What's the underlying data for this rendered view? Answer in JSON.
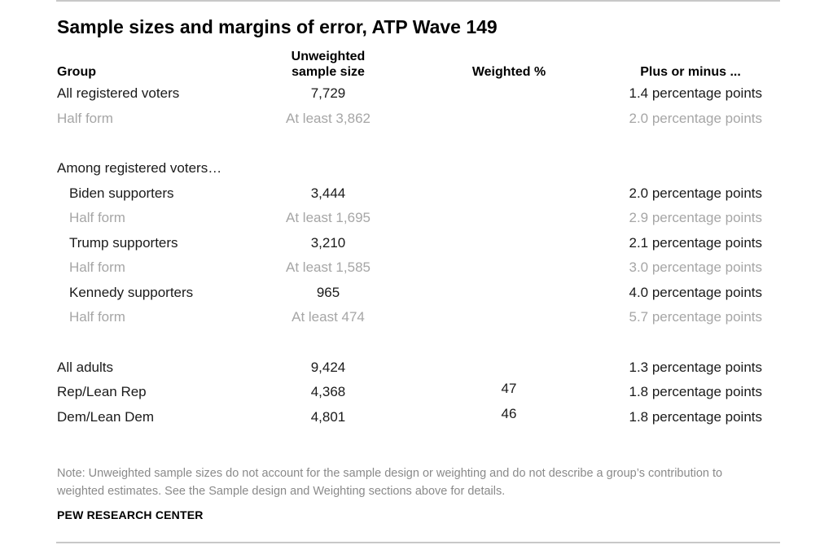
{
  "title": "Sample sizes and margins of error, ATP Wave 149",
  "headers": {
    "group": "Group",
    "unweighted_line1": "Unweighted",
    "unweighted_line2": "sample size",
    "weighted": "Weighted %",
    "plus_minus": "Plus or minus ..."
  },
  "rows": [
    {
      "label": "All registered voters",
      "unweighted": "7,729",
      "weighted": "",
      "moe": "1.4 percentage points"
    },
    {
      "label": "Half form",
      "unweighted": "At least 3,862",
      "weighted": "",
      "moe": "2.0 percentage points"
    },
    {
      "label": "Among registered voters…",
      "unweighted": "",
      "weighted": "",
      "moe": ""
    },
    {
      "label": "Biden supporters",
      "unweighted": "3,444",
      "weighted": "",
      "moe": "2.0 percentage points"
    },
    {
      "label": "Half form",
      "unweighted": "At least 1,695",
      "weighted": "",
      "moe": "2.9 percentage points"
    },
    {
      "label": "Trump supporters",
      "unweighted": "3,210",
      "weighted": "",
      "moe": "2.1 percentage points"
    },
    {
      "label": "Half form",
      "unweighted": "At least 1,585",
      "weighted": "",
      "moe": "3.0 percentage points"
    },
    {
      "label": "Kennedy supporters",
      "unweighted": "965",
      "weighted": "",
      "moe": "4.0 percentage points"
    },
    {
      "label": "Half form",
      "unweighted": "At least 474",
      "weighted": "",
      "moe": "5.7 percentage points"
    },
    {
      "label": "All adults",
      "unweighted": "9,424",
      "weighted": "",
      "moe": "1.3 percentage points"
    },
    {
      "label": "Rep/Lean Rep",
      "unweighted": "4,368",
      "weighted": "47",
      "moe": "1.8 percentage points"
    },
    {
      "label": "Dem/Lean Dem",
      "unweighted": "4,801",
      "weighted": "46",
      "moe": "1.8 percentage points"
    }
  ],
  "note": "Note: Unweighted sample sizes do not account for the sample design or weighting and do not describe a group’s contribution to weighted estimates. See the Sample design and Weighting sections above for details.",
  "source": "PEW RESEARCH CENTER",
  "colors": {
    "text": "#1a1a1a",
    "muted": "#a6a6a6",
    "rule": "#c8c8c8"
  }
}
